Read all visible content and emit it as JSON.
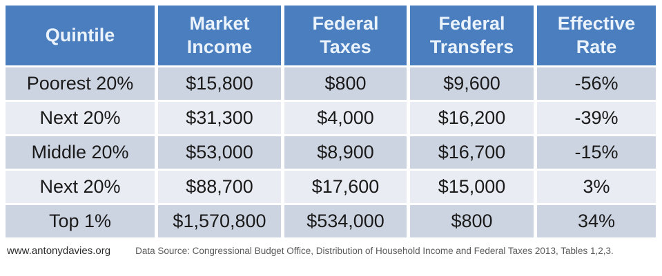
{
  "chart_data": {
    "type": "table",
    "columns": [
      "Quintile",
      "Market Income",
      "Federal Taxes",
      "Federal Transfers",
      "Effective Rate"
    ],
    "rows": [
      [
        "Poorest 20%",
        "$15,800",
        "$800",
        "$9,600",
        "-56%"
      ],
      [
        "Next 20%",
        "$31,300",
        "$4,000",
        "$16,200",
        "-39%"
      ],
      [
        "Middle 20%",
        "$53,000",
        "$8,900",
        "$16,700",
        "-15%"
      ],
      [
        "Next 20%",
        "$88,700",
        "$17,600",
        "$15,000",
        "3%"
      ],
      [
        "Top 1%",
        "$1,570,800",
        "$534,000",
        "$800",
        "34%"
      ]
    ]
  },
  "footer": {
    "website": "www.antonydavies.org",
    "source": "Data Source: Congressional Budget Office, Distribution of Household Income and Federal Taxes 2013, Tables 1,2,3."
  },
  "colors": {
    "header_bg": "#4A7EBF",
    "header_text": "#EAF2FB",
    "row_odd_bg": "#CDD4E1",
    "row_even_bg": "#E9ECF3",
    "cell_text": "#1A1A1A"
  }
}
